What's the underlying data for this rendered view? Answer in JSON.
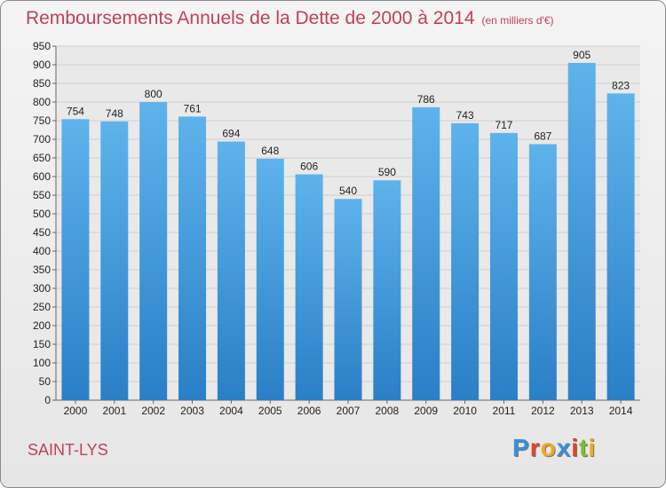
{
  "chart_data": {
    "type": "bar",
    "title": "Remboursements Annuels de la Dette de 2000 à 2014",
    "unit": "(en milliers d'€)",
    "categories": [
      "2000",
      "2001",
      "2002",
      "2003",
      "2004",
      "2005",
      "2006",
      "2007",
      "2008",
      "2009",
      "2010",
      "2011",
      "2012",
      "2013",
      "2014"
    ],
    "values": [
      754,
      748,
      800,
      761,
      694,
      648,
      606,
      540,
      590,
      786,
      743,
      717,
      687,
      905,
      823
    ],
    "ylim": [
      0,
      950
    ],
    "ytick_step": 50,
    "grid": true,
    "bar_color_top": "#5eb3ec",
    "bar_color_bottom": "#2a7fc6"
  },
  "location": "SAINT-LYS",
  "logo": {
    "letters": [
      "P",
      "r",
      "o",
      "x",
      "i",
      "t",
      "i"
    ],
    "colors": [
      "#3a8fd8",
      "#e0452e",
      "#f2a81d",
      "#3a8fd8",
      "#e0452e",
      "#7cbf2a",
      "#f2a81d"
    ]
  }
}
